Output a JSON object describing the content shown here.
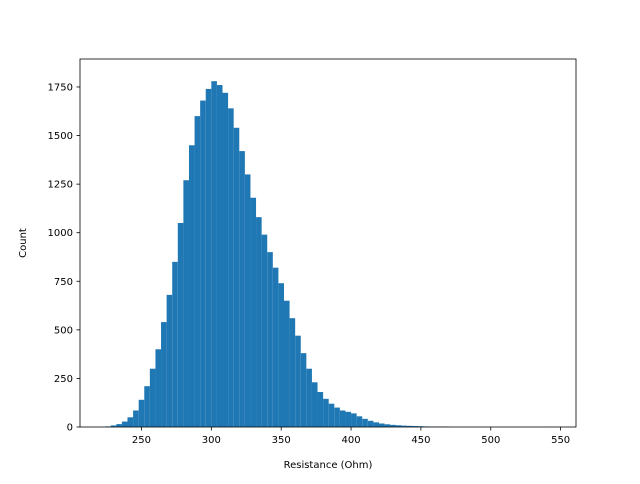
{
  "chart_data": {
    "type": "bar",
    "subtype": "histogram",
    "title": "",
    "xlabel": "Resistance (Ohm)",
    "ylabel": "Count",
    "xlim": [
      206,
      561
    ],
    "ylim": [
      0,
      1894
    ],
    "xticks": [
      250,
      300,
      350,
      400,
      450,
      500,
      550
    ],
    "yticks": [
      0,
      250,
      500,
      750,
      1000,
      1250,
      1500,
      1750
    ],
    "grid": false,
    "color": "#1f77b4",
    "bin_width": 4,
    "bins": [
      224,
      228,
      232,
      236,
      240,
      244,
      248,
      252,
      256,
      260,
      264,
      268,
      272,
      276,
      280,
      284,
      288,
      292,
      296,
      300,
      304,
      308,
      312,
      316,
      320,
      324,
      328,
      332,
      336,
      340,
      344,
      348,
      352,
      356,
      360,
      364,
      368,
      372,
      376,
      380,
      384,
      388,
      392,
      396,
      400,
      404,
      408,
      412,
      416,
      420,
      424,
      428,
      432,
      436,
      440,
      444,
      448,
      452,
      456,
      460,
      464,
      468,
      540
    ],
    "counts": [
      3,
      8,
      15,
      28,
      50,
      85,
      140,
      210,
      300,
      400,
      540,
      680,
      850,
      1050,
      1270,
      1450,
      1600,
      1680,
      1740,
      1780,
      1760,
      1720,
      1640,
      1540,
      1420,
      1300,
      1180,
      1080,
      990,
      900,
      820,
      740,
      650,
      560,
      470,
      380,
      300,
      230,
      180,
      145,
      120,
      100,
      85,
      78,
      70,
      55,
      42,
      32,
      24,
      18,
      14,
      11,
      9,
      7,
      6,
      5,
      4,
      3,
      2,
      2,
      2,
      1,
      1
    ]
  }
}
